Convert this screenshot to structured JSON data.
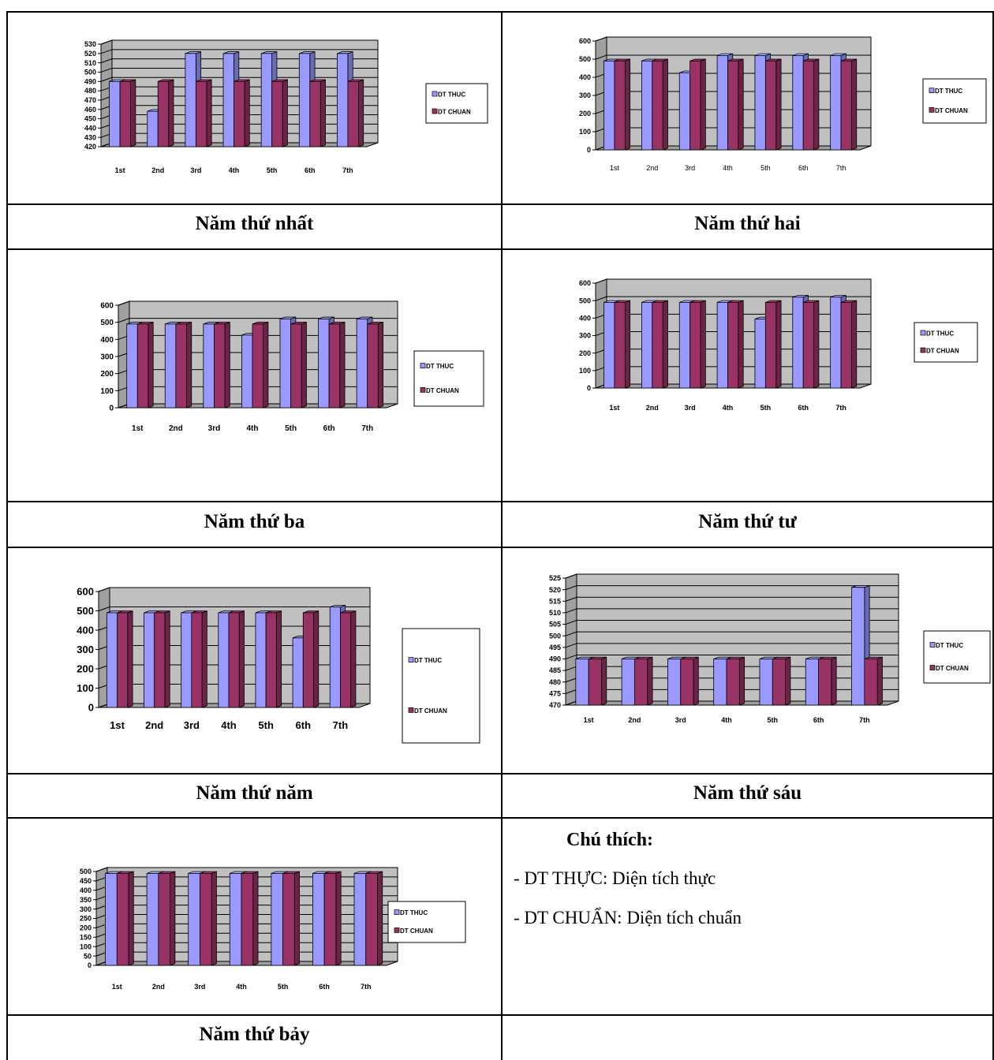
{
  "captions": [
    "Năm thứ nhất",
    "Năm thứ hai",
    "Năm thứ ba",
    "Năm thứ tư",
    "Năm thứ năm",
    "Năm thứ sáu",
    "Năm thứ bảy"
  ],
  "legend": {
    "series1": "DT THUC",
    "series2": "DT CHUAN"
  },
  "notes": {
    "title": "Chú thích:",
    "line1": "- DT THỰC: Diện tích thực",
    "line2": "- DT CHUẨN: Diện tích chuẩn"
  },
  "colors": {
    "thuc": "#9999ff",
    "chuan": "#993366",
    "wall": "#c0c0c0",
    "wall_top": "#a0a0a0"
  },
  "chart_data": [
    {
      "type": "bar",
      "categories": [
        "1st",
        "2nd",
        "3rd",
        "4th",
        "5th",
        "6th",
        "7th"
      ],
      "series": [
        {
          "name": "DT THUC",
          "values": [
            490,
            458,
            520,
            520,
            520,
            520,
            520
          ]
        },
        {
          "name": "DT CHUAN",
          "values": [
            490,
            490,
            490,
            490,
            490,
            490,
            490
          ]
        }
      ],
      "ylim": [
        420,
        530
      ],
      "yticks": [
        420,
        430,
        440,
        450,
        460,
        470,
        480,
        490,
        500,
        510,
        520,
        530
      ],
      "grid": true,
      "legend": "right"
    },
    {
      "type": "bar",
      "categories": [
        "1st",
        "2nd",
        "3rd",
        "4th",
        "5th",
        "6th",
        "7th"
      ],
      "series": [
        {
          "name": "DT THUC",
          "values": [
            490,
            490,
            425,
            520,
            520,
            520,
            520
          ]
        },
        {
          "name": "DT CHUAN",
          "values": [
            490,
            490,
            490,
            490,
            490,
            490,
            490
          ]
        }
      ],
      "ylim": [
        0,
        600
      ],
      "yticks": [
        0,
        100,
        200,
        300,
        400,
        500,
        600
      ],
      "grid": true,
      "legend": "right"
    },
    {
      "type": "bar",
      "categories": [
        "1st",
        "2nd",
        "3rd",
        "4th",
        "5th",
        "6th",
        "7th"
      ],
      "series": [
        {
          "name": "DT THUC",
          "values": [
            490,
            490,
            490,
            425,
            520,
            520,
            520
          ]
        },
        {
          "name": "DT CHUAN",
          "values": [
            490,
            490,
            490,
            490,
            490,
            490,
            490
          ]
        }
      ],
      "ylim": [
        0,
        600
      ],
      "yticks": [
        0,
        100,
        200,
        300,
        400,
        500,
        600
      ],
      "grid": true,
      "legend": "right"
    },
    {
      "type": "bar",
      "categories": [
        "1st",
        "2nd",
        "3rd",
        "4th",
        "5th",
        "6th",
        "7th"
      ],
      "series": [
        {
          "name": "DT THUC",
          "values": [
            490,
            490,
            490,
            490,
            395,
            520,
            520
          ]
        },
        {
          "name": "DT CHUAN",
          "values": [
            490,
            490,
            490,
            490,
            490,
            490,
            490
          ]
        }
      ],
      "ylim": [
        0,
        600
      ],
      "yticks": [
        0,
        100,
        200,
        300,
        400,
        500,
        600
      ],
      "grid": true,
      "legend": "right"
    },
    {
      "type": "bar",
      "categories": [
        "1st",
        "2nd",
        "3rd",
        "4th",
        "5th",
        "6th",
        "7th"
      ],
      "series": [
        {
          "name": "DT THUC",
          "values": [
            490,
            490,
            490,
            490,
            490,
            360,
            520
          ]
        },
        {
          "name": "DT CHUAN",
          "values": [
            490,
            490,
            490,
            490,
            490,
            490,
            490
          ]
        }
      ],
      "ylim": [
        0,
        600
      ],
      "yticks": [
        0,
        100,
        200,
        300,
        400,
        500,
        600
      ],
      "grid": true,
      "legend": "right"
    },
    {
      "type": "bar",
      "categories": [
        "1st",
        "2nd",
        "3rd",
        "4th",
        "5th",
        "6th",
        "7th"
      ],
      "series": [
        {
          "name": "DT THUC",
          "values": [
            490,
            490,
            490,
            490,
            490,
            490,
            521
          ]
        },
        {
          "name": "DT CHUAN",
          "values": [
            490,
            490,
            490,
            490,
            490,
            490,
            490
          ]
        }
      ],
      "ylim": [
        470,
        525
      ],
      "yticks": [
        470,
        475,
        480,
        485,
        490,
        495,
        500,
        505,
        510,
        515,
        520,
        525
      ],
      "grid": true,
      "legend": "right"
    },
    {
      "type": "bar",
      "categories": [
        "1st",
        "2nd",
        "3rd",
        "4th",
        "5th",
        "6th",
        "7th"
      ],
      "series": [
        {
          "name": "DT THUC",
          "values": [
            490,
            490,
            490,
            490,
            490,
            490,
            490
          ]
        },
        {
          "name": "DT CHUAN",
          "values": [
            490,
            490,
            490,
            490,
            490,
            490,
            490
          ]
        }
      ],
      "ylim": [
        0,
        500
      ],
      "yticks": [
        0,
        50,
        100,
        150,
        200,
        250,
        300,
        350,
        400,
        450,
        500
      ],
      "grid": true,
      "legend": "right"
    }
  ]
}
